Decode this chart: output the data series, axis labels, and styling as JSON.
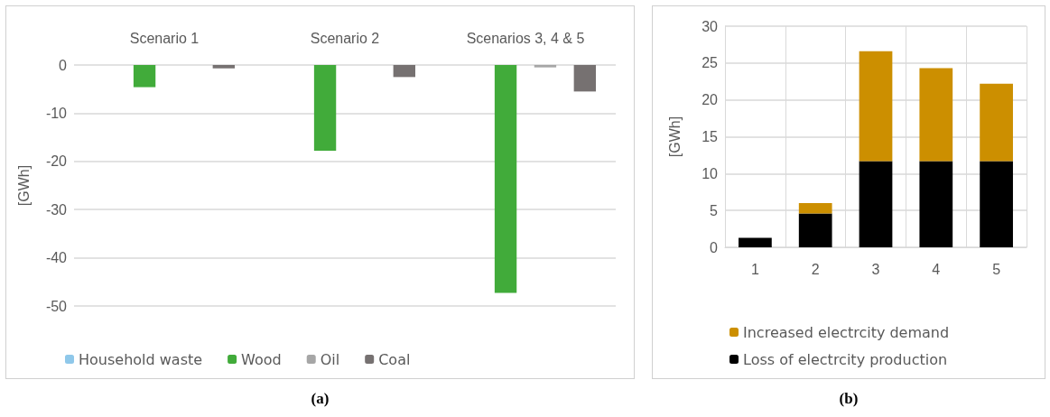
{
  "chart_data": [
    {
      "type": "bar",
      "ylabel": "[GWh]",
      "categories": [
        "Scenario 1",
        "Scenario 2",
        "Scenarios 3, 4 & 5"
      ],
      "series": [
        {
          "name": "Household waste",
          "color": "#8fc8ea",
          "values": [
            0,
            0,
            0
          ]
        },
        {
          "name": "Wood",
          "color": "#41ab3a",
          "values": [
            -4.6,
            -17.8,
            -47.3
          ]
        },
        {
          "name": "Oil",
          "color": "#a6a6a6",
          "values": [
            0,
            0,
            -0.5
          ]
        },
        {
          "name": "Coal",
          "color": "#767171",
          "values": [
            -0.7,
            -2.5,
            -5.5
          ]
        }
      ],
      "ylim": [
        -50,
        0
      ],
      "yticks": [
        -50,
        -40,
        -30,
        -20,
        -10,
        0
      ],
      "grid": "y",
      "legend": "bottom",
      "annotations": [
        "(a)"
      ]
    },
    {
      "type": "bar",
      "ylabel": "[GWh]",
      "categories": [
        "1",
        "2",
        "3",
        "4",
        "5"
      ],
      "stacked": true,
      "series": [
        {
          "name": "Loss of electrcity production",
          "color": "#000000",
          "values": [
            1.3,
            4.6,
            11.7,
            11.7,
            11.7
          ]
        },
        {
          "name": "Increased electrcity demand",
          "color": "#cc8f00",
          "values": [
            0,
            1.4,
            14.9,
            12.6,
            10.5
          ]
        }
      ],
      "ylim": [
        0,
        30
      ],
      "yticks": [
        0,
        5,
        10,
        15,
        20,
        25,
        30
      ],
      "grid": true,
      "legend": "bottom",
      "annotations": [
        "(b)"
      ]
    }
  ]
}
